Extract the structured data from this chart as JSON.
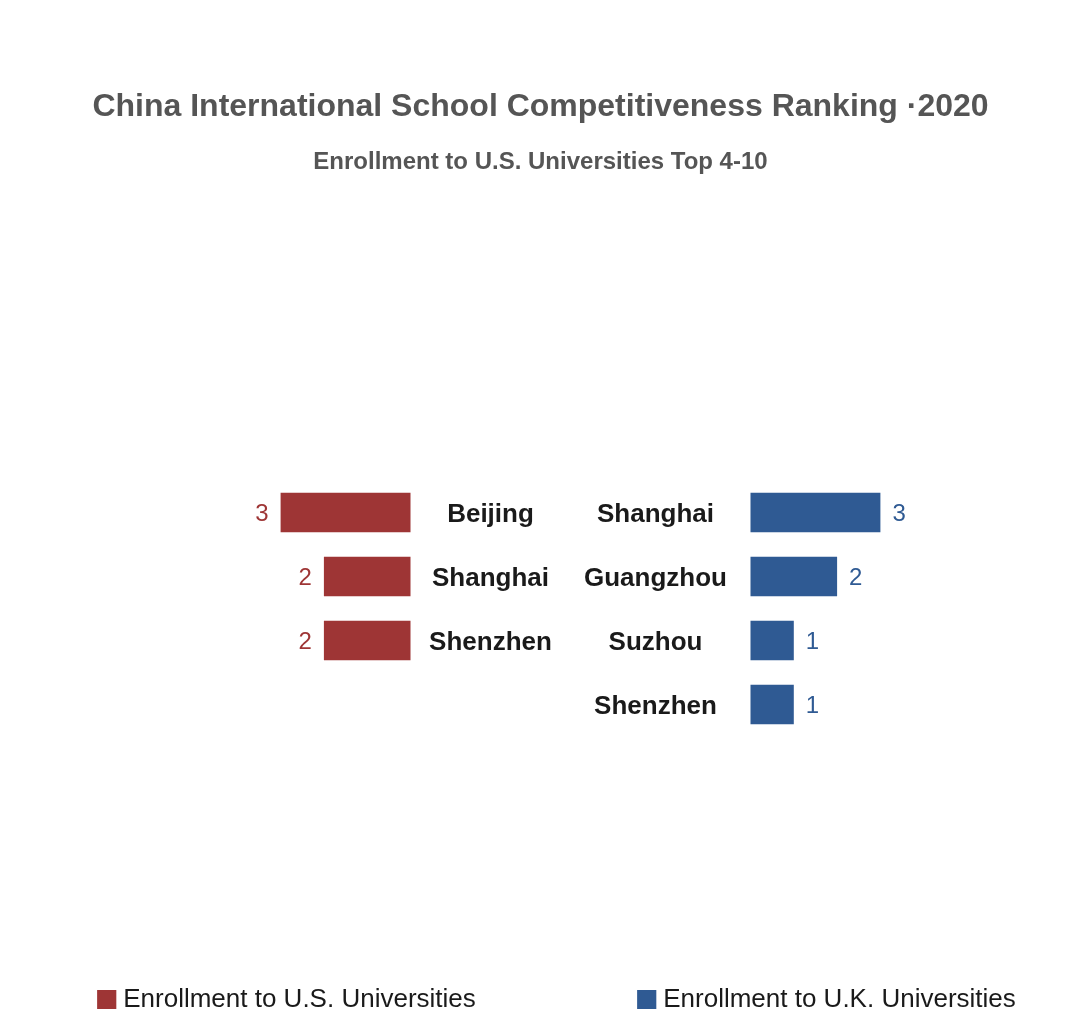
{
  "chart_data": [
    {
      "type": "bar",
      "orientation": "horizontal",
      "title": "China International School Competitiveness Ranking ·2020",
      "subtitle": "Enrollment to U.S. Universities Top 4-10",
      "categories": [
        "Beijing",
        "Shanghai",
        "Shenzhen"
      ],
      "series": [
        {
          "name": "Enrollment to U.S. Universities",
          "color": "#9e3535",
          "values": [
            3,
            2,
            2
          ]
        }
      ],
      "data_labels": true,
      "tick_labels": "y",
      "legend": "bottom"
    },
    {
      "type": "bar",
      "orientation": "horizontal",
      "categories": [
        "Shanghai",
        "Guangzhou",
        "Suzhou",
        "Shenzhen"
      ],
      "series": [
        {
          "name": "Enrollment to U.K. Universities",
          "color": "#2f5a93",
          "values": [
            3,
            2,
            1,
            1
          ]
        }
      ],
      "data_labels": true,
      "tick_labels": "y",
      "legend": "bottom"
    }
  ]
}
